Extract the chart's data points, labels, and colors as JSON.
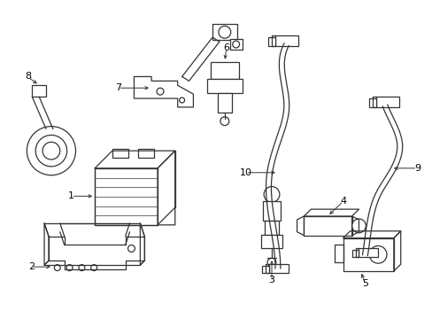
{
  "bg_color": "#ffffff",
  "line_color": "#333333",
  "figsize": [
    4.89,
    3.6
  ],
  "dpi": 100
}
